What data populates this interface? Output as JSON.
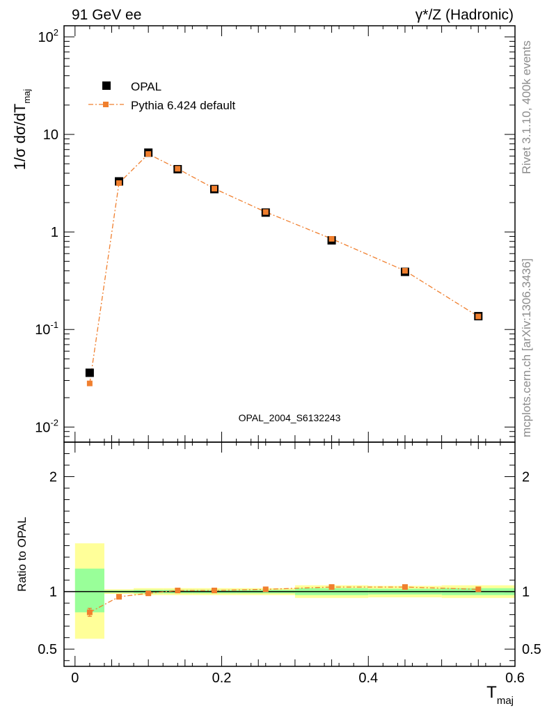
{
  "header": {
    "left": "91 GeV ee",
    "right": "γ*/Z (Hadronic)"
  },
  "side_labels": {
    "top": "Rivet 3.1.10,  400k events",
    "bottom": "mcplots.cern.ch [arXiv:1306.3436]"
  },
  "watermark": "OPAL_2004_S6132243",
  "colors": {
    "data": "#000000",
    "mc": "#f07f2e",
    "band_inner": "#99ff99",
    "band_outer": "#ffff99"
  },
  "chart_data": [
    {
      "type": "scatter",
      "panel": "main",
      "ylabel": "1/σ dσ/dT",
      "ylabel_sub": "maj",
      "yscale": "log",
      "ylim": [
        0.007,
        130
      ],
      "xlim": [
        -0.015,
        0.6
      ],
      "yticks": [
        {
          "value": 0.01,
          "base": "10",
          "exp": "-2"
        },
        {
          "value": 0.1,
          "base": "10",
          "exp": "-1"
        },
        {
          "value": 1,
          "base": "1",
          "exp": ""
        },
        {
          "value": 10,
          "base": "10",
          "exp": ""
        },
        {
          "value": 100,
          "base": "10",
          "exp": "2"
        }
      ],
      "legend_position": "top-left",
      "x": [
        0.02,
        0.06,
        0.1,
        0.14,
        0.19,
        0.26,
        0.35,
        0.45,
        0.55
      ],
      "series": [
        {
          "name": "OPAL",
          "style": "markers",
          "values": [
            0.036,
            3.3,
            6.5,
            4.4,
            2.75,
            1.58,
            0.82,
            0.39,
            0.137
          ]
        },
        {
          "name": "Pythia 6.424 default",
          "style": "dash-dot line with markers",
          "values": [
            0.028,
            3.17,
            6.3,
            4.45,
            2.78,
            1.6,
            0.85,
            0.4,
            0.136
          ]
        }
      ]
    },
    {
      "type": "line",
      "panel": "ratio",
      "ylabel": "Ratio to OPAL",
      "xlabel": "T",
      "xlabel_sub": "maj",
      "ylim": [
        0.35,
        2.3
      ],
      "xlim": [
        -0.015,
        0.6
      ],
      "yticks": [
        0.5,
        1,
        2
      ],
      "xticks": [
        0,
        0.2,
        0.4,
        0.6
      ],
      "x": [
        0.02,
        0.06,
        0.1,
        0.14,
        0.19,
        0.26,
        0.35,
        0.45,
        0.55
      ],
      "ratio": [
        0.82,
        0.955,
        0.985,
        1.01,
        1.01,
        1.02,
        1.04,
        1.04,
        1.02
      ],
      "ratio_err": [
        0.035,
        0,
        0,
        0,
        0,
        0,
        0,
        0,
        0
      ],
      "bins": [
        {
          "x0": 0.0,
          "x1": 0.04,
          "inner": [
            0.82,
            1.2
          ],
          "outer": [
            0.59,
            1.42
          ]
        },
        {
          "x0": 0.04,
          "x1": 0.08,
          "inner": [
            0.99,
            1.01
          ],
          "outer": [
            0.98,
            1.02
          ]
        },
        {
          "x0": 0.08,
          "x1": 0.12,
          "inner": [
            0.985,
            1.015
          ],
          "outer": [
            0.97,
            1.03
          ]
        },
        {
          "x0": 0.12,
          "x1": 0.16,
          "inner": [
            0.985,
            1.015
          ],
          "outer": [
            0.97,
            1.03
          ]
        },
        {
          "x0": 0.16,
          "x1": 0.22,
          "inner": [
            0.985,
            1.015
          ],
          "outer": [
            0.97,
            1.03
          ]
        },
        {
          "x0": 0.22,
          "x1": 0.3,
          "inner": [
            0.985,
            1.015
          ],
          "outer": [
            0.97,
            1.03
          ]
        },
        {
          "x0": 0.3,
          "x1": 0.4,
          "inner": [
            0.97,
            1.03
          ],
          "outer": [
            0.945,
            1.055
          ]
        },
        {
          "x0": 0.4,
          "x1": 0.5,
          "inner": [
            0.975,
            1.025
          ],
          "outer": [
            0.95,
            1.05
          ]
        },
        {
          "x0": 0.5,
          "x1": 0.6,
          "inner": [
            0.97,
            1.03
          ],
          "outer": [
            0.945,
            1.055
          ]
        }
      ]
    }
  ]
}
